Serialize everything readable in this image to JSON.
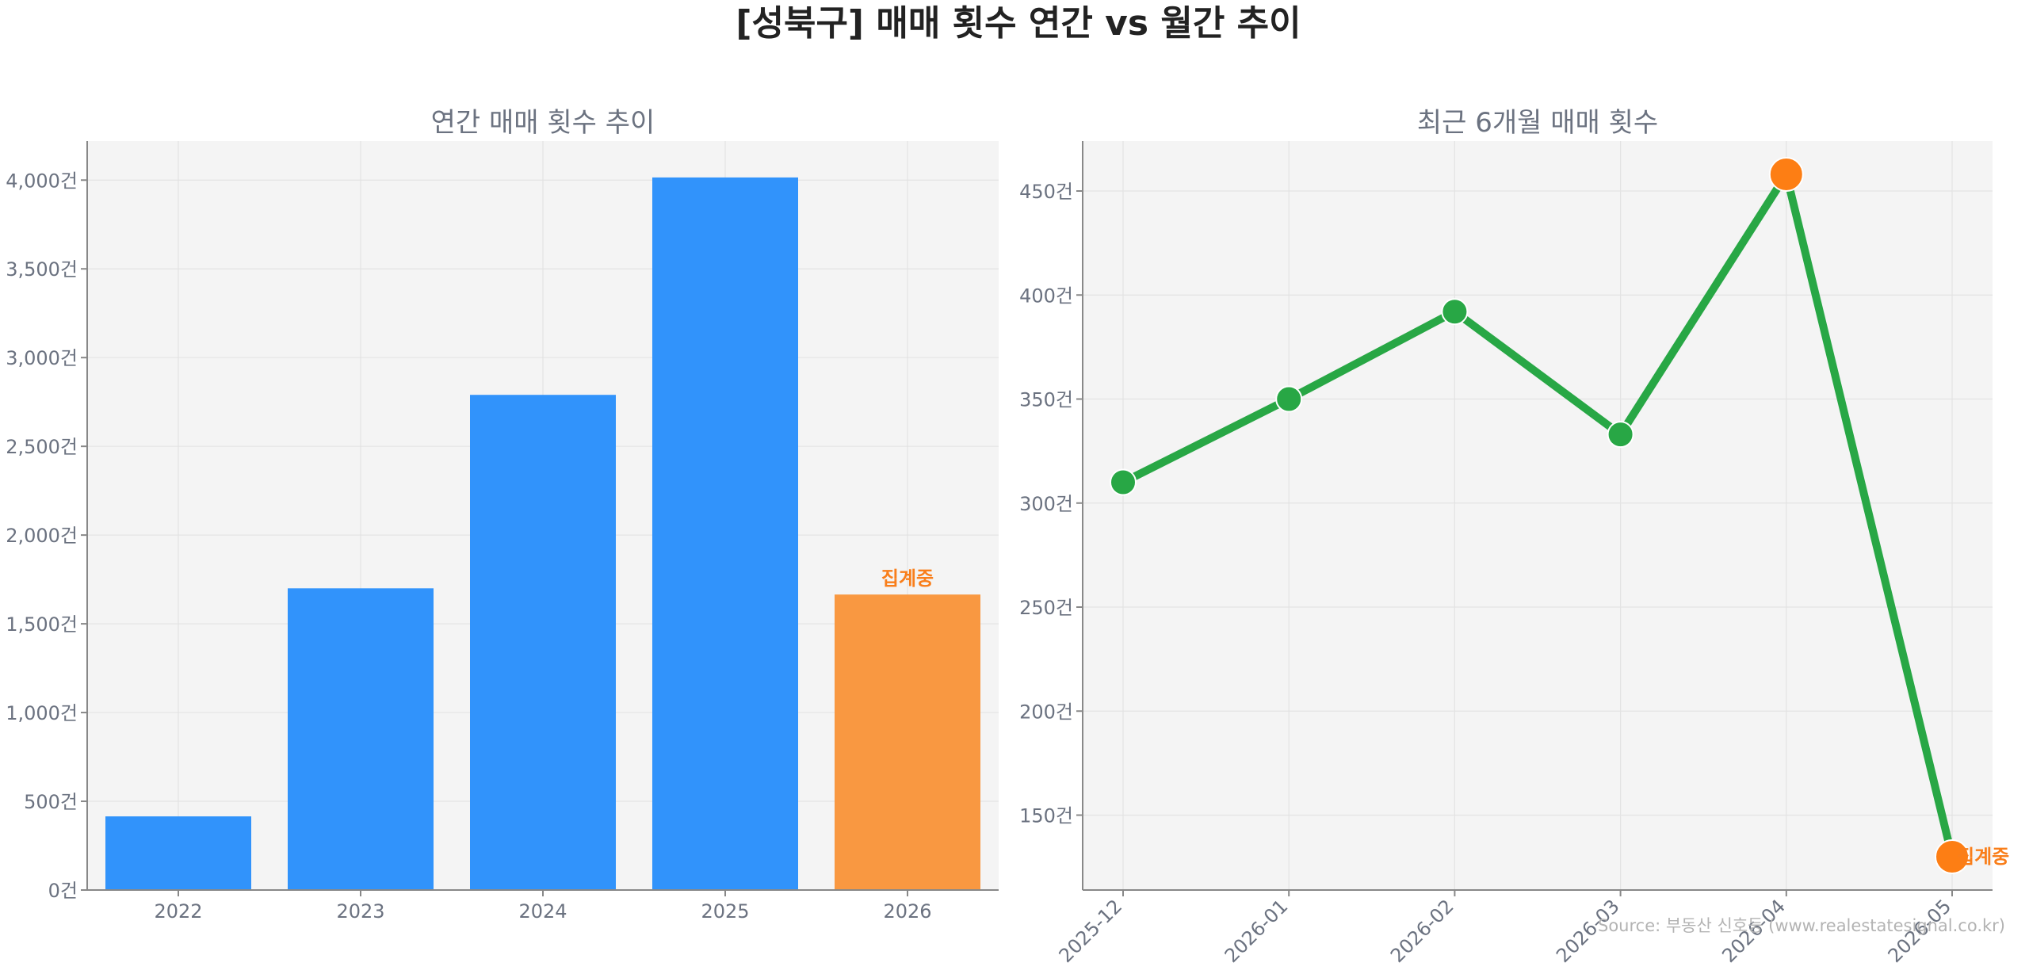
{
  "title": "[성북구] 매매 횟수 연간 vs 월간 추이",
  "source": "Source: 부동산 신호등 (www.realestatesignal.co.kr)",
  "chart_data": [
    {
      "type": "bar",
      "title": "연간 매매 횟수 추이",
      "xlabel": "",
      "ylabel": "",
      "categories": [
        "2022",
        "2023",
        "2024",
        "2025",
        "2026"
      ],
      "values": [
        415,
        1700,
        2790,
        4015,
        1665
      ],
      "ylim": [
        0,
        4220
      ],
      "yticks": [
        0,
        500,
        1000,
        1500,
        2000,
        2500,
        3000,
        3500,
        4000
      ],
      "ytick_labels": [
        "0건",
        "500건",
        "1,000건",
        "1,500건",
        "2,000건",
        "2,500건",
        "3,000건",
        "3,500건",
        "4,000건"
      ],
      "bar_color": "#3193fb",
      "highlight_color": "#f99841",
      "highlight_index": 4,
      "highlight_label": "집계중",
      "grid": true
    },
    {
      "type": "line",
      "title": "최근 6개월 매매 횟수",
      "xlabel": "",
      "ylabel": "",
      "x": [
        "2025-12",
        "2026-01",
        "2026-02",
        "2026-03",
        "2026-04",
        "2026-05"
      ],
      "values": [
        310,
        350,
        392,
        333,
        458,
        130
      ],
      "ylim": [
        114,
        474
      ],
      "yticks": [
        150,
        200,
        250,
        300,
        350,
        400,
        450
      ],
      "ytick_labels": [
        "150건",
        "200건",
        "250건",
        "300건",
        "350건",
        "400건",
        "450건"
      ],
      "line_color": "#28a745",
      "highlight_color": "#fd7e14",
      "highlight_indices": [
        4,
        5
      ],
      "highlight_label": "집계중",
      "grid": true
    }
  ]
}
